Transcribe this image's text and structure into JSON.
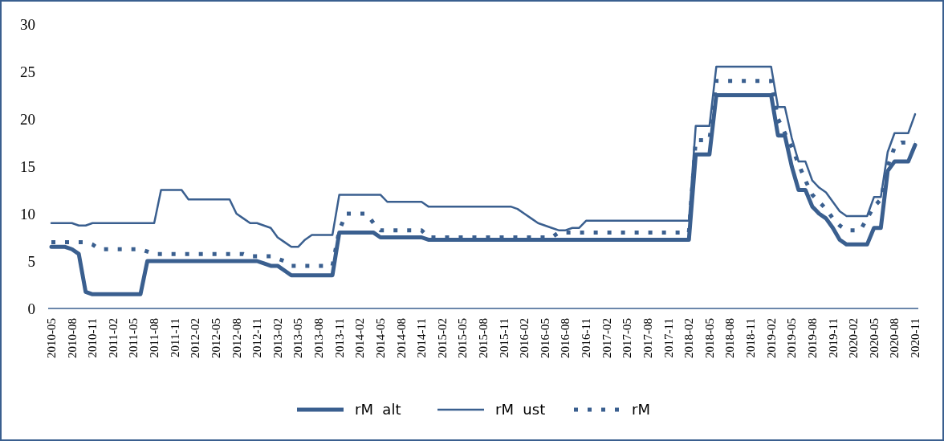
{
  "chart_data": {
    "type": "line",
    "categories": [
      "2010-05",
      null,
      null,
      "2010-08",
      null,
      null,
      "2010-11",
      null,
      null,
      "2011-02",
      null,
      null,
      "2011-05",
      null,
      null,
      "2011-08",
      null,
      null,
      "2011-11",
      null,
      null,
      "2012-02",
      null,
      null,
      "2012-05",
      null,
      null,
      "2012-08",
      null,
      null,
      "2012-11",
      null,
      null,
      "2013-02",
      null,
      null,
      "2013-05",
      null,
      null,
      "2013-08",
      null,
      null,
      "2013-11",
      null,
      null,
      "2014-02",
      null,
      null,
      "2014-05",
      null,
      null,
      "2014-08",
      null,
      null,
      "2014-11",
      null,
      null,
      "2015-02",
      null,
      null,
      "2015-05",
      null,
      null,
      "2015-08",
      null,
      null,
      "2015-11",
      null,
      null,
      "2016-02",
      null,
      null,
      "2016-05",
      null,
      null,
      "2016-08",
      null,
      null,
      "2016-11",
      null,
      null,
      "2017-02",
      null,
      null,
      "2017-05",
      null,
      null,
      "2017-08",
      null,
      null,
      "2017-11",
      null,
      null,
      "2018-02",
      null,
      null,
      "2018-05",
      null,
      null,
      "2018-08",
      null,
      null,
      "2018-11",
      null,
      null,
      "2019-02",
      null,
      null,
      "2019-05",
      null,
      null,
      "2019-08",
      null,
      null,
      "2019-11",
      null,
      null,
      "2020-02",
      null,
      null,
      "2020-05",
      null,
      null,
      "2020-08",
      null,
      null,
      "2020-11"
    ],
    "series": [
      {
        "name": "rM  alt",
        "color": "#3a5f8f",
        "line_style": "solid",
        "values": [
          6.5,
          6.5,
          6.5,
          6.25,
          5.75,
          1.75,
          1.5,
          1.5,
          1.5,
          1.5,
          1.5,
          1.5,
          1.5,
          1.5,
          5,
          5,
          5,
          5,
          5,
          5,
          5,
          5,
          5,
          5,
          5,
          5,
          5,
          5,
          5,
          5,
          5,
          4.75,
          4.5,
          4.5,
          4,
          3.5,
          3.5,
          3.5,
          3.5,
          3.5,
          3.5,
          3.5,
          8,
          8,
          8,
          8,
          8,
          8,
          7.5,
          7.5,
          7.5,
          7.5,
          7.5,
          7.5,
          7.5,
          7.25,
          7.25,
          7.25,
          7.25,
          7.25,
          7.25,
          7.25,
          7.25,
          7.25,
          7.25,
          7.25,
          7.25,
          7.25,
          7.25,
          7.25,
          7.25,
          7.25,
          7.25,
          7.25,
          7.25,
          7.25,
          7.25,
          7.25,
          7.25,
          7.25,
          7.25,
          7.25,
          7.25,
          7.25,
          7.25,
          7.25,
          7.25,
          7.25,
          7.25,
          7.25,
          7.25,
          7.25,
          7.25,
          7.25,
          16.25,
          16.25,
          16.25,
          22.5,
          22.5,
          22.5,
          22.5,
          22.5,
          22.5,
          22.5,
          22.5,
          22.5,
          18.25,
          18.25,
          15,
          12.5,
          12.5,
          10.75,
          10,
          9.5,
          8.5,
          7.25,
          6.75,
          6.75,
          6.75,
          6.75,
          8.5,
          8.5,
          14.5,
          15.5,
          15.5,
          15.5,
          17.25
        ]
      },
      {
        "name": "rM  ust",
        "color": "#3a5f8f",
        "line_style": "solid",
        "values": [
          9,
          9,
          9,
          9,
          8.75,
          8.75,
          9,
          9,
          9,
          9,
          9,
          9,
          9,
          9,
          9,
          9,
          12.5,
          12.5,
          12.5,
          12.5,
          11.5,
          11.5,
          11.5,
          11.5,
          11.5,
          11.5,
          11.5,
          10,
          9.5,
          9,
          9,
          8.75,
          8.5,
          7.5,
          7,
          6.5,
          6.5,
          7.25,
          7.75,
          7.75,
          7.75,
          7.75,
          12,
          12,
          12,
          12,
          12,
          12,
          12,
          11.25,
          11.25,
          11.25,
          11.25,
          11.25,
          11.25,
          10.75,
          10.75,
          10.75,
          10.75,
          10.75,
          10.75,
          10.75,
          10.75,
          10.75,
          10.75,
          10.75,
          10.75,
          10.75,
          10.5,
          10,
          9.5,
          9,
          8.75,
          8.5,
          8.25,
          8.25,
          8.5,
          8.5,
          9.25,
          9.25,
          9.25,
          9.25,
          9.25,
          9.25,
          9.25,
          9.25,
          9.25,
          9.25,
          9.25,
          9.25,
          9.25,
          9.25,
          9.25,
          9.25,
          19.25,
          19.25,
          19.25,
          25.5,
          25.5,
          25.5,
          25.5,
          25.5,
          25.5,
          25.5,
          25.5,
          25.5,
          21.25,
          21.25,
          18,
          15.5,
          15.5,
          13.5,
          12.75,
          12.25,
          11.25,
          10.25,
          9.75,
          9.75,
          9.75,
          9.75,
          11.75,
          11.75,
          16.5,
          18.5,
          18.5,
          18.5,
          20.5
        ]
      },
      {
        "name": "rM",
        "color": "#3a5f8f",
        "line_style": "dotted",
        "values": [
          7,
          7,
          7,
          7,
          7,
          7,
          6.75,
          6.25,
          6.25,
          6.25,
          6.25,
          6.25,
          6.25,
          6.25,
          6,
          5.75,
          5.75,
          5.75,
          5.75,
          5.75,
          5.75,
          5.75,
          5.75,
          5.75,
          5.75,
          5.75,
          5.75,
          5.75,
          5.75,
          5.5,
          5.5,
          5.5,
          5.5,
          5.25,
          5,
          4.5,
          4.5,
          4.5,
          4.5,
          4.5,
          4.5,
          4.5,
          8.25,
          10,
          10,
          10,
          10,
          9,
          8.25,
          8.25,
          8.25,
          8.25,
          8.25,
          8.25,
          8.25,
          7.5,
          7.5,
          7.5,
          7.5,
          7.5,
          7.5,
          7.5,
          7.5,
          7.5,
          7.5,
          7.5,
          7.5,
          7.5,
          7.5,
          7.5,
          7.5,
          7.5,
          7.5,
          7.5,
          8,
          8,
          8,
          8,
          8,
          8,
          8,
          8,
          8,
          8,
          8,
          8,
          8,
          8,
          8,
          8,
          8,
          8,
          8,
          8,
          17.75,
          17.75,
          17.75,
          24,
          24,
          24,
          24,
          24,
          24,
          24,
          24,
          24,
          20,
          18.5,
          17,
          15.25,
          13.5,
          12,
          11.25,
          10.5,
          9.5,
          8.75,
          8.25,
          8.25,
          8.25,
          9.5,
          10.75,
          11.5,
          15,
          17,
          17.5,
          17.5,
          17.5
        ]
      }
    ],
    "ylim": [
      0,
      30
    ],
    "yticks": [
      0,
      5,
      10,
      15,
      20,
      25,
      30
    ],
    "grid": false,
    "legend": "bottom",
    "marker": "none"
  }
}
